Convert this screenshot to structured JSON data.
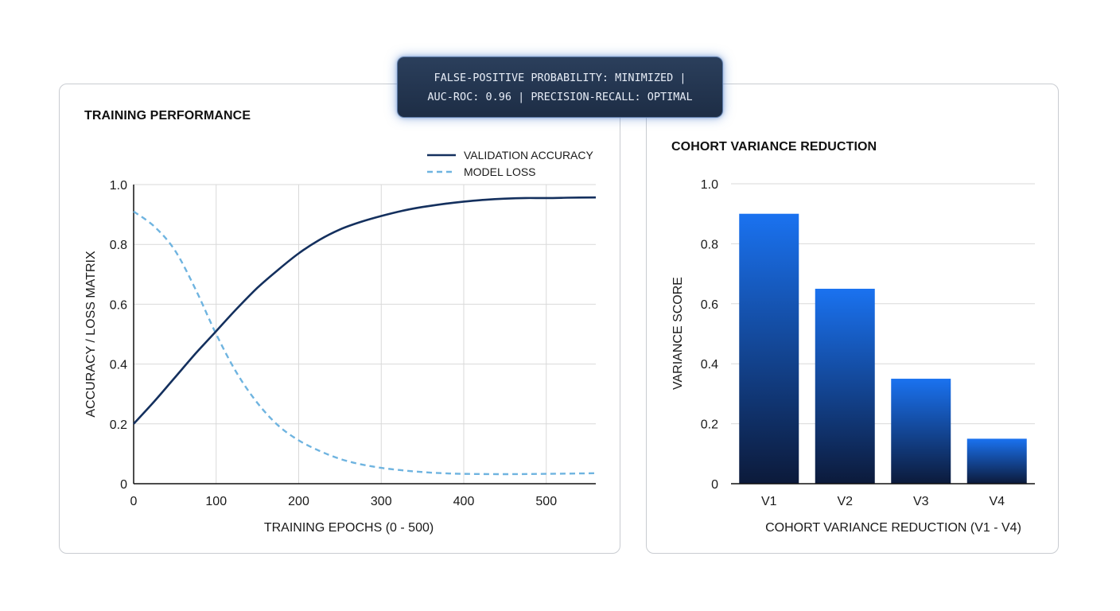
{
  "banner": {
    "line1": "FALSE-POSITIVE PROBABILITY: MINIMIZED |",
    "line2": "AUC-ROC: 0.96 | PRECISION-RECALL: OPTIMAL"
  },
  "colors": {
    "accuracy_line": "#14305e",
    "loss_line": "#6fb4e0",
    "bar_top": "#1a72f0",
    "bar_bottom": "#0c1a3a",
    "grid": "#d9d9d9"
  },
  "chart_data": [
    {
      "type": "line",
      "title": "TRAINING PERFORMANCE",
      "xlabel": "TRAINING EPOCHS (0 - 500)",
      "ylabel": "ACCURACY / LOSS MATRIX",
      "xlim": [
        0,
        560
      ],
      "ylim": [
        0,
        1.0
      ],
      "xticks": [
        "0",
        "100",
        "200",
        "300",
        "400",
        "500"
      ],
      "xtick_values": [
        0,
        100,
        200,
        300,
        400,
        500
      ],
      "yticks": [
        "0",
        "0.2",
        "0.4",
        "0.6",
        "0.8",
        "1.0"
      ],
      "ytick_values": [
        0,
        0.2,
        0.4,
        0.6,
        0.8,
        1.0
      ],
      "grid": true,
      "legend_position": "top-right",
      "series": [
        {
          "name": "VALIDATION ACCURACY",
          "style": "solid",
          "x": [
            0,
            25,
            50,
            75,
            100,
            125,
            150,
            175,
            200,
            225,
            250,
            275,
            300,
            325,
            350,
            375,
            400,
            425,
            450,
            475,
            500,
            525,
            560
          ],
          "y": [
            0.2,
            0.275,
            0.355,
            0.435,
            0.51,
            0.585,
            0.655,
            0.715,
            0.77,
            0.815,
            0.85,
            0.875,
            0.895,
            0.912,
            0.925,
            0.935,
            0.943,
            0.949,
            0.953,
            0.955,
            0.955,
            0.956,
            0.957
          ]
        },
        {
          "name": "MODEL LOSS",
          "style": "dashed",
          "x": [
            0,
            25,
            50,
            75,
            100,
            125,
            150,
            175,
            200,
            225,
            250,
            275,
            300,
            325,
            350,
            375,
            400,
            450,
            500,
            560
          ],
          "y": [
            0.91,
            0.86,
            0.78,
            0.65,
            0.5,
            0.37,
            0.27,
            0.195,
            0.145,
            0.11,
            0.083,
            0.065,
            0.053,
            0.045,
            0.039,
            0.035,
            0.033,
            0.032,
            0.033,
            0.035
          ]
        }
      ]
    },
    {
      "type": "bar",
      "title": "COHORT VARIANCE REDUCTION",
      "xlabel": "COHORT VARIANCE REDUCTION (V1 - V4)",
      "ylabel": "VARIANCE SCORE",
      "categories": [
        "V1",
        "V2",
        "V3",
        "V4"
      ],
      "values": [
        0.9,
        0.65,
        0.35,
        0.15
      ],
      "ylim": [
        0,
        1.0
      ],
      "yticks": [
        "0",
        "0.2",
        "0.4",
        "0.6",
        "0.8",
        "1.0"
      ],
      "ytick_values": [
        0,
        0.2,
        0.4,
        0.6,
        0.8,
        1.0
      ],
      "grid": true
    }
  ]
}
